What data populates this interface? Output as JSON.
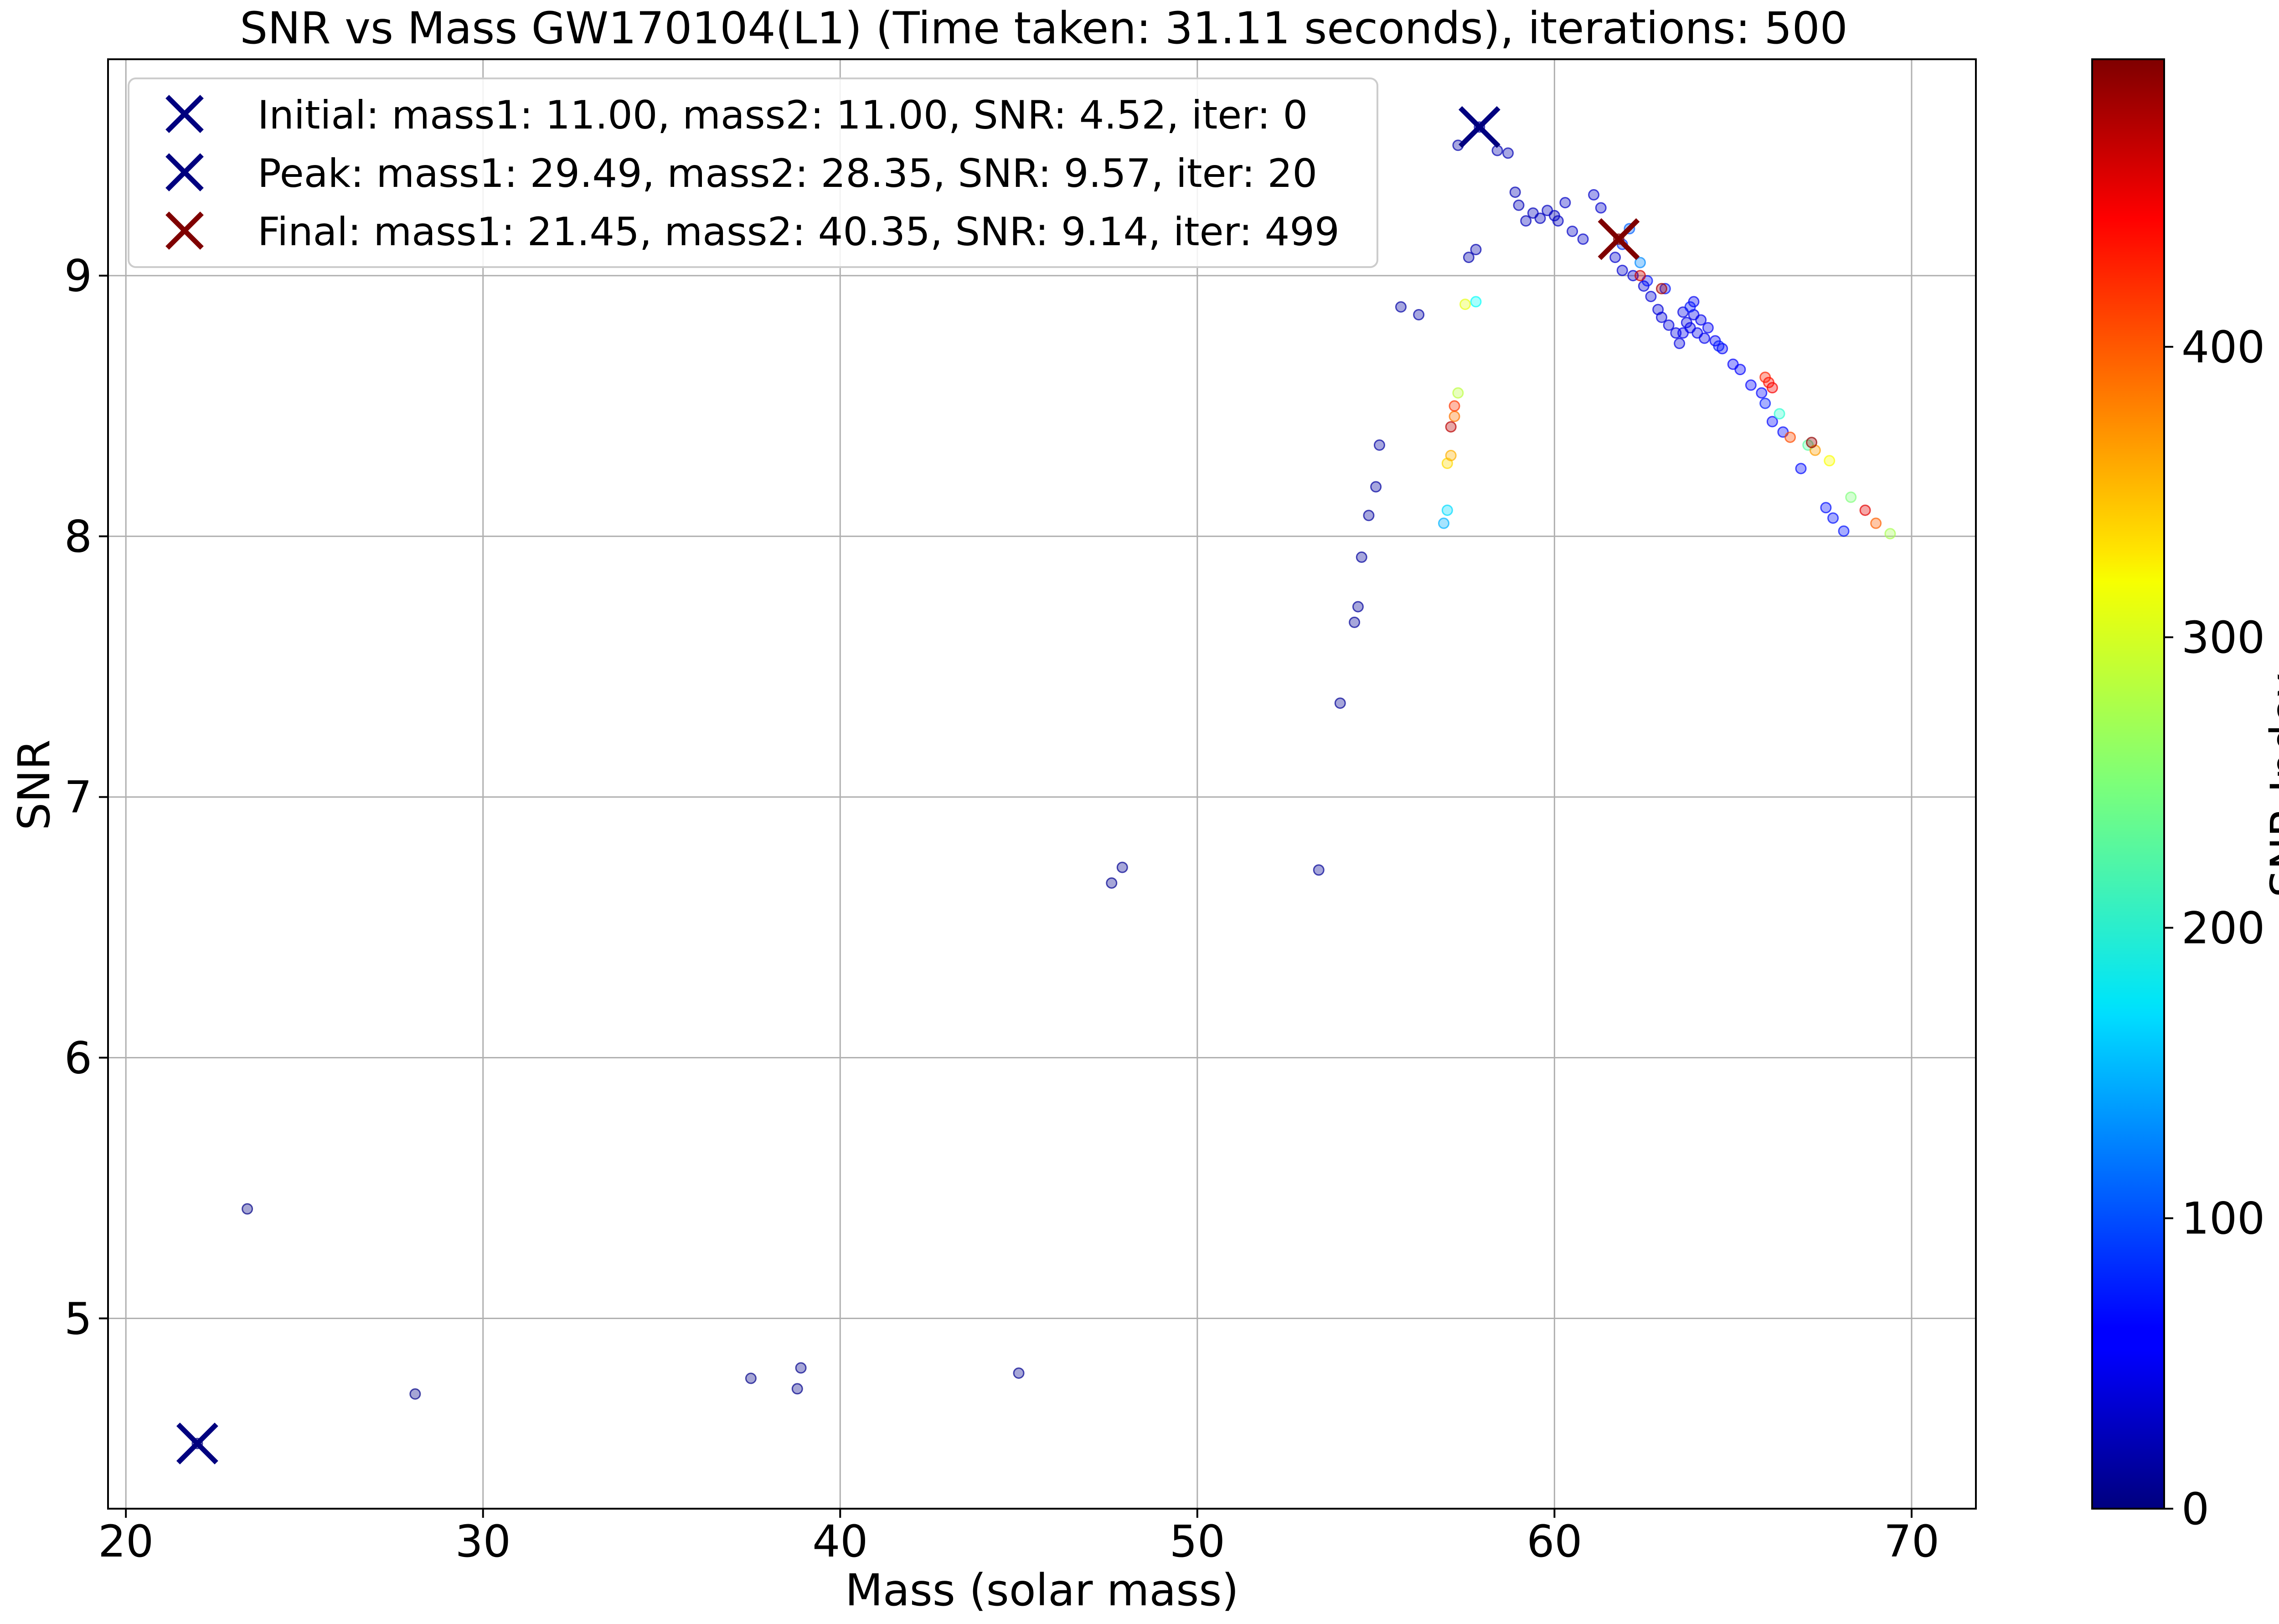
{
  "chart_data": {
    "type": "scatter",
    "title": "SNR vs Mass GW170104(L1) (Time taken: 31.11 seconds), iterations: 500",
    "xlabel": "Mass (solar mass)",
    "ylabel": "SNR",
    "xlim": [
      19.5,
      71.8
    ],
    "ylim": [
      4.27,
      9.83
    ],
    "xticks": [
      20,
      30,
      40,
      50,
      60,
      70
    ],
    "yticks": [
      5,
      6,
      7,
      8,
      9
    ],
    "grid": true,
    "legend_position": "top-left",
    "colorbar": {
      "label": "SNR Index",
      "colormap": "jet",
      "range": [
        0,
        499
      ],
      "ticks": [
        0,
        100,
        200,
        300,
        400
      ]
    },
    "series": [
      {
        "name": "iterations",
        "points": [
          [
            22.0,
            4.52,
            0
          ],
          [
            23.4,
            5.42,
            2
          ],
          [
            28.1,
            4.71,
            3
          ],
          [
            37.5,
            4.77,
            4
          ],
          [
            38.8,
            4.73,
            5
          ],
          [
            38.9,
            4.81,
            6
          ],
          [
            45.0,
            4.79,
            7
          ],
          [
            47.6,
            6.67,
            8
          ],
          [
            47.9,
            6.73,
            9
          ],
          [
            53.4,
            6.72,
            10
          ],
          [
            54.0,
            7.36,
            11
          ],
          [
            54.4,
            7.67,
            12
          ],
          [
            54.5,
            7.73,
            13
          ],
          [
            54.6,
            7.92,
            14
          ],
          [
            54.8,
            8.08,
            15
          ],
          [
            55.0,
            8.19,
            16
          ],
          [
            55.1,
            8.35,
            17
          ],
          [
            55.7,
            8.88,
            18
          ],
          [
            56.2,
            8.85,
            19
          ],
          [
            57.9,
            9.57,
            20
          ],
          [
            57.3,
            9.5,
            21
          ],
          [
            57.6,
            9.07,
            22
          ],
          [
            57.8,
            9.1,
            23
          ],
          [
            58.4,
            9.48,
            24
          ],
          [
            58.7,
            9.47,
            25
          ],
          [
            58.9,
            9.32,
            26
          ],
          [
            59.0,
            9.27,
            27
          ],
          [
            59.2,
            9.21,
            28
          ],
          [
            59.4,
            9.24,
            29
          ],
          [
            59.6,
            9.22,
            30
          ],
          [
            59.8,
            9.25,
            31
          ],
          [
            60.0,
            9.23,
            32
          ],
          [
            60.1,
            9.21,
            33
          ],
          [
            60.3,
            9.28,
            34
          ],
          [
            60.5,
            9.17,
            35
          ],
          [
            60.8,
            9.14,
            36
          ],
          [
            61.1,
            9.31,
            37
          ],
          [
            61.3,
            9.26,
            38
          ],
          [
            61.7,
            9.07,
            39
          ],
          [
            61.9,
            9.02,
            40
          ],
          [
            62.2,
            9.0,
            41
          ],
          [
            62.5,
            8.96,
            42
          ],
          [
            62.7,
            8.92,
            43
          ],
          [
            62.9,
            8.87,
            44
          ],
          [
            63.0,
            8.84,
            45
          ],
          [
            63.2,
            8.81,
            46
          ],
          [
            63.4,
            8.78,
            47
          ],
          [
            63.5,
            8.74,
            48
          ],
          [
            63.6,
            8.86,
            49
          ],
          [
            63.7,
            8.82,
            50
          ],
          [
            63.8,
            8.8,
            51
          ],
          [
            63.9,
            8.85,
            52
          ],
          [
            64.0,
            8.78,
            53
          ],
          [
            64.1,
            8.83,
            54
          ],
          [
            64.2,
            8.76,
            55
          ],
          [
            63.6,
            8.78,
            56
          ],
          [
            63.9,
            8.9,
            57
          ],
          [
            64.3,
            8.8,
            58
          ],
          [
            64.5,
            8.75,
            59
          ],
          [
            64.7,
            8.72,
            60
          ],
          [
            65.0,
            8.66,
            61
          ],
          [
            65.2,
            8.64,
            62
          ],
          [
            65.5,
            8.58,
            63
          ],
          [
            65.8,
            8.55,
            64
          ],
          [
            66.1,
            8.44,
            65
          ],
          [
            66.4,
            8.4,
            66
          ],
          [
            66.9,
            8.26,
            67
          ],
          [
            67.6,
            8.11,
            68
          ],
          [
            67.8,
            8.07,
            69
          ],
          [
            68.1,
            8.02,
            70
          ],
          [
            62.6,
            8.98,
            71
          ],
          [
            63.1,
            8.95,
            72
          ],
          [
            63.8,
            8.88,
            73
          ],
          [
            64.6,
            8.73,
            74
          ],
          [
            65.9,
            8.51,
            75
          ],
          [
            61.9,
            9.12,
            90
          ],
          [
            62.1,
            9.18,
            110
          ],
          [
            62.4,
            9.05,
            130
          ],
          [
            56.9,
            8.05,
            150
          ],
          [
            57.0,
            8.1,
            170
          ],
          [
            57.8,
            8.9,
            190
          ],
          [
            66.3,
            8.47,
            210
          ],
          [
            67.1,
            8.35,
            230
          ],
          [
            68.3,
            8.15,
            250
          ],
          [
            69.4,
            8.01,
            270
          ],
          [
            57.3,
            8.55,
            280
          ],
          [
            57.5,
            8.89,
            300
          ],
          [
            67.7,
            8.29,
            310
          ],
          [
            57.0,
            8.28,
            330
          ],
          [
            57.1,
            8.31,
            350
          ],
          [
            67.3,
            8.33,
            360
          ],
          [
            57.2,
            8.46,
            380
          ],
          [
            69.0,
            8.05,
            390
          ],
          [
            66.6,
            8.38,
            400
          ],
          [
            57.2,
            8.5,
            410
          ],
          [
            65.9,
            8.61,
            420
          ],
          [
            66.0,
            8.59,
            430
          ],
          [
            66.1,
            8.57,
            440
          ],
          [
            68.7,
            8.1,
            450
          ],
          [
            62.4,
            9.0,
            460
          ],
          [
            57.1,
            8.42,
            470
          ],
          [
            63.0,
            8.95,
            480
          ],
          [
            67.2,
            8.36,
            490
          ],
          [
            61.8,
            9.14,
            499
          ]
        ]
      }
    ],
    "markers": [
      {
        "name": "Initial: mass1: 11.00, mass2: 11.00, SNR: 4.52, iter: 0",
        "x": 22.0,
        "y": 4.52,
        "color": "#00007f"
      },
      {
        "name": "Peak: mass1: 29.49, mass2: 28.35, SNR: 9.57, iter: 20",
        "x": 57.9,
        "y": 9.57,
        "color": "#00007f"
      },
      {
        "name": "Final: mass1: 21.45, mass2: 40.35, SNR: 9.14, iter: 499",
        "x": 61.8,
        "y": 9.14,
        "color": "#7f0000"
      }
    ]
  }
}
